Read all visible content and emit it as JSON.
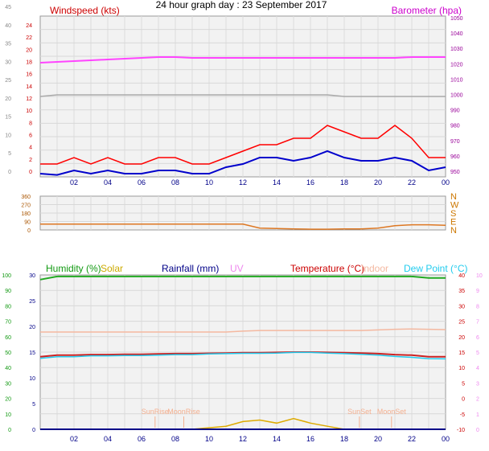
{
  "page_title": "24 hour graph day : 23 September 2017",
  "x_ticks": [
    "02",
    "04",
    "06",
    "08",
    "10",
    "12",
    "14",
    "16",
    "18",
    "20",
    "22",
    "00"
  ],
  "chart_data": [
    {
      "type": "line",
      "id": "wind",
      "left_label": "Windspeed (kts)",
      "right_label": "Barometer (hpa)",
      "left_outer_ticks": [
        "0",
        "5",
        "10",
        "15",
        "20",
        "25",
        "30",
        "35",
        "40",
        "45"
      ],
      "left_inner_ticks": [
        "0",
        "2",
        "4",
        "6",
        "8",
        "10",
        "12",
        "14",
        "16",
        "18",
        "20",
        "22",
        "24"
      ],
      "right_ticks": [
        "950",
        "960",
        "970",
        "980",
        "990",
        "1000",
        "1010",
        "1020",
        "1030",
        "1040",
        "1050"
      ],
      "ylim": [
        0,
        25
      ],
      "y2lim": [
        950,
        1050
      ],
      "x": [
        0,
        1,
        2,
        3,
        4,
        5,
        6,
        7,
        8,
        9,
        10,
        11,
        12,
        13,
        14,
        15,
        16,
        17,
        18,
        19,
        20,
        21,
        22,
        23,
        24
      ],
      "series": [
        {
          "name": "Windspeed (kts)",
          "color": "#ff0000",
          "values": [
            2,
            2,
            3,
            2,
            3,
            2,
            2,
            3,
            3,
            2,
            2,
            3,
            4,
            5,
            5,
            6,
            6,
            8,
            7,
            6,
            6,
            8,
            6,
            3,
            3
          ]
        },
        {
          "name": "",
          "color": "#0000cc",
          "values": [
            0.5,
            0.3,
            1,
            0.5,
            1,
            0.5,
            0.5,
            1,
            1,
            0.5,
            0.5,
            1.5,
            2,
            3,
            3,
            2.5,
            3,
            4,
            3,
            2.5,
            2.5,
            3,
            2.5,
            1,
            1.5
          ]
        },
        {
          "name": "Barometer (hpa)",
          "color": "#ff44ff",
          "values": [
            1021,
            1021.5,
            1022,
            1022.5,
            1023,
            1023.5,
            1024,
            1024.5,
            1024.5,
            1024,
            1024,
            1024,
            1024,
            1024,
            1024,
            1024,
            1024,
            1024,
            1024,
            1024,
            1024,
            1024,
            1024.5,
            1024.5,
            1024.5
          ]
        },
        {
          "name": "",
          "color": "#aaaaaa",
          "values": [
            1000,
            1001,
            1001,
            1001,
            1001,
            1001,
            1001,
            1001,
            1001,
            1001,
            1001,
            1001,
            1001,
            1001,
            1001,
            1001,
            1001,
            1001,
            1000,
            1000,
            1000,
            1000,
            1000,
            1000,
            1000
          ]
        }
      ]
    },
    {
      "type": "line",
      "id": "direction",
      "left_ticks": [
        "0",
        "90",
        "180",
        "270",
        "360"
      ],
      "right_ticks": [
        "N",
        "E",
        "S",
        "W",
        "N"
      ],
      "ylim": [
        0,
        360
      ],
      "x": [
        0,
        1,
        2,
        3,
        4,
        5,
        6,
        7,
        8,
        9,
        10,
        11,
        12,
        13,
        14,
        15,
        16,
        17,
        18,
        19,
        20,
        21,
        22,
        23,
        24
      ],
      "series": [
        {
          "name": "",
          "color": "#dd7722",
          "values": [
            62,
            62,
            62,
            62,
            62,
            62,
            62,
            62,
            62,
            62,
            62,
            62,
            62,
            20,
            15,
            10,
            8,
            8,
            10,
            10,
            20,
            45,
            55,
            55,
            50
          ]
        }
      ]
    },
    {
      "type": "line",
      "id": "climate",
      "labels": {
        "humidity": "Humidity  (%)",
        "solar": "Solar",
        "rainfall": "Rainfall (mm)",
        "uv": "UV",
        "temperature": "Temperature (°C)",
        "indoor": "Indoor",
        "dewpoint": "Dew Point (°C)"
      },
      "left_humidity_ticks": [
        "0",
        "10",
        "20",
        "30",
        "40",
        "50",
        "60",
        "70",
        "80",
        "90",
        "100"
      ],
      "left_rain_ticks": [
        "0",
        "5",
        "10",
        "15",
        "20",
        "25",
        "30"
      ],
      "right_temp_ticks": [
        "-10",
        "-5",
        "0",
        "5",
        "10",
        "15",
        "20",
        "25",
        "30",
        "35",
        "40"
      ],
      "right_uv_ticks": [
        "0",
        "1",
        "2",
        "3",
        "4",
        "5",
        "6",
        "7",
        "8",
        "9",
        "10"
      ],
      "ylim": [
        -10,
        40
      ],
      "x": [
        0,
        1,
        2,
        3,
        4,
        5,
        6,
        7,
        8,
        9,
        10,
        11,
        12,
        13,
        14,
        15,
        16,
        17,
        18,
        19,
        20,
        21,
        22,
        23,
        24
      ],
      "series": [
        {
          "name": "Humidity  (%)",
          "color": "#22aa22",
          "values": [
            97,
            99,
            99,
            99,
            99,
            99,
            99,
            99,
            99,
            99,
            99,
            99,
            99,
            99,
            99,
            99,
            99,
            99,
            99,
            99,
            99,
            99,
            99,
            98,
            98
          ]
        },
        {
          "name": "Temperature (°C)",
          "color": "#cc2222",
          "values": [
            13.5,
            14,
            14,
            14.2,
            14.2,
            14.3,
            14.3,
            14.4,
            14.5,
            14.5,
            14.6,
            14.7,
            14.8,
            14.8,
            14.9,
            15,
            15,
            14.9,
            14.8,
            14.7,
            14.5,
            14.2,
            14,
            13.5,
            13.5
          ]
        },
        {
          "name": "Dew Point (°C)",
          "color": "#22ccee",
          "values": [
            13,
            13.5,
            13.5,
            13.8,
            13.8,
            13.9,
            13.9,
            14,
            14.2,
            14.2,
            14.4,
            14.5,
            14.6,
            14.6,
            14.7,
            14.9,
            14.9,
            14.7,
            14.5,
            14.3,
            14,
            13.6,
            13.3,
            12.9,
            12.8
          ]
        },
        {
          "name": "Indoor",
          "color": "#f4b8a0",
          "values": [
            21.5,
            21.5,
            21.5,
            21.5,
            21.5,
            21.5,
            21.5,
            21.5,
            21.5,
            21.5,
            21.5,
            21.5,
            21.8,
            22,
            22,
            22,
            22,
            22,
            22,
            22,
            22.2,
            22.4,
            22.5,
            22.4,
            22.3
          ]
        },
        {
          "name": "Solar",
          "color": "#ddaa00",
          "values": [
            -10,
            -10,
            -10,
            -10,
            -10,
            -10,
            -10,
            -10,
            -10,
            -10,
            -9.5,
            -9,
            -7.5,
            -7,
            -8,
            -6.5,
            -8,
            -9,
            -10,
            -10,
            -10,
            -10,
            -10,
            -10,
            -10
          ]
        },
        {
          "name": "Rainfall (mm)",
          "color": "#000088",
          "values": [
            -10,
            -10,
            -10,
            -10,
            -10,
            -10,
            -10,
            -10,
            -10,
            -10,
            -10,
            -10,
            -10,
            -10,
            -10,
            -10,
            -10,
            -10,
            -10,
            -10,
            -10,
            -10,
            -10,
            -10,
            -10
          ]
        }
      ],
      "annotations": [
        {
          "text": "SunRise",
          "x": 6.8
        },
        {
          "text": "SunSet",
          "x": 18.9
        },
        {
          "text": "MoonRise",
          "x": 8.5
        },
        {
          "text": "MoonSet",
          "x": 20.8
        }
      ]
    }
  ]
}
